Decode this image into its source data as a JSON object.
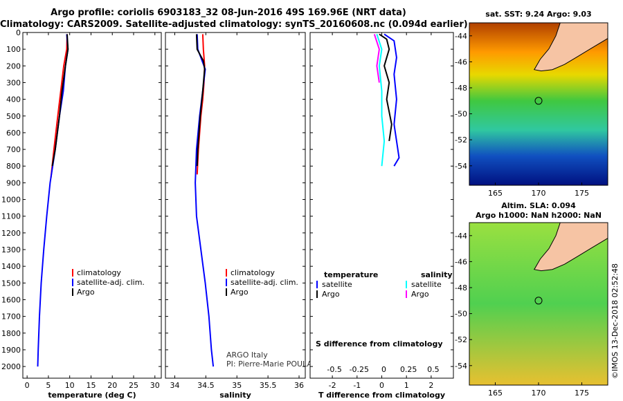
{
  "header": {
    "line1": "Argo profile: coriolis 6903183_32 08-Jun-2016 49S 169.96E (NRT data)",
    "line2": "Climatology: CARS2009. Satellite-adjusted climatology: synTS_20160608.nc (0.094d earlier)"
  },
  "colors": {
    "climatology": "#ff0000",
    "satellite": "#0000ff",
    "argo": "#000000",
    "sat_salinity": "#00ffff",
    "argo_salinity": "#ff00ff",
    "land": "#f6c4a4"
  },
  "chart_data": [
    {
      "type": "line",
      "id": "temperature",
      "xlabel": "temperature (deg C)",
      "xlim": [
        -1,
        31.5
      ],
      "ylim": [
        2070,
        0
      ],
      "xticks": [
        0,
        5,
        10,
        15,
        20,
        25,
        30
      ],
      "yticks": [
        0,
        100,
        200,
        300,
        400,
        500,
        600,
        700,
        800,
        900,
        1000,
        1100,
        1200,
        1300,
        1400,
        1500,
        1600,
        1700,
        1800,
        1900,
        2000
      ],
      "legend": [
        "climatology",
        "satellite-adj. clim.",
        "Argo"
      ],
      "series": [
        {
          "name": "climatology",
          "points": [
            [
              9.4,
              10
            ],
            [
              9.3,
              100
            ],
            [
              8.6,
              200
            ],
            [
              7.9,
              350
            ],
            [
              7.2,
              500
            ],
            [
              6.3,
              700
            ],
            [
              5.6,
              870
            ]
          ]
        },
        {
          "name": "satellite-adj. clim.",
          "points": [
            [
              9.3,
              10
            ],
            [
              9.6,
              100
            ],
            [
              9.0,
              200
            ],
            [
              8.5,
              350
            ],
            [
              7.6,
              500
            ],
            [
              6.6,
              700
            ],
            [
              5.4,
              900
            ],
            [
              4.6,
              1100
            ],
            [
              3.9,
              1300
            ],
            [
              3.3,
              1500
            ],
            [
              2.9,
              1700
            ],
            [
              2.6,
              1900
            ],
            [
              2.5,
              2000
            ]
          ]
        },
        {
          "name": "Argo",
          "points": [
            [
              9.4,
              10
            ],
            [
              9.6,
              100
            ],
            [
              9.0,
              200
            ],
            [
              8.2,
              350
            ],
            [
              7.6,
              500
            ],
            [
              6.6,
              700
            ],
            [
              5.9,
              800
            ]
          ]
        }
      ]
    },
    {
      "type": "line",
      "id": "salinity",
      "xlabel": "salinity",
      "xlim": [
        33.85,
        36.1
      ],
      "ylim": [
        2070,
        0
      ],
      "xticks": [
        34,
        34.5,
        35,
        35.5,
        36
      ],
      "xticklabels": [
        "34",
        "34.5",
        "35",
        "35.5",
        "36"
      ],
      "legend": [
        "climatology",
        "satellite-adj. clim.",
        "Argo"
      ],
      "series": [
        {
          "name": "climatology",
          "points": [
            [
              34.45,
              10
            ],
            [
              34.46,
              100
            ],
            [
              34.48,
              200
            ],
            [
              34.47,
              300
            ],
            [
              34.45,
              400
            ],
            [
              34.42,
              500
            ],
            [
              34.38,
              700
            ],
            [
              34.36,
              850
            ]
          ]
        },
        {
          "name": "satellite-adj. clim.",
          "points": [
            [
              34.36,
              10
            ],
            [
              34.37,
              100
            ],
            [
              34.43,
              160
            ],
            [
              34.49,
              220
            ],
            [
              34.45,
              350
            ],
            [
              34.4,
              500
            ],
            [
              34.35,
              700
            ],
            [
              34.33,
              900
            ],
            [
              34.35,
              1100
            ],
            [
              34.42,
              1300
            ],
            [
              34.49,
              1500
            ],
            [
              34.55,
              1700
            ],
            [
              34.59,
              1900
            ],
            [
              34.62,
              2000
            ]
          ]
        },
        {
          "name": "Argo",
          "points": [
            [
              34.35,
              10
            ],
            [
              34.36,
              100
            ],
            [
              34.46,
              170
            ],
            [
              34.48,
              220
            ],
            [
              34.45,
              350
            ],
            [
              34.41,
              500
            ],
            [
              34.37,
              700
            ],
            [
              34.36,
              800
            ]
          ]
        }
      ],
      "annotation": [
        "ARGO Italy",
        "PI: Pierre-Marie POULAIN"
      ]
    },
    {
      "type": "line",
      "id": "difference",
      "xlabel": "T difference from climatology",
      "toplabel": "S difference from climatology",
      "xlim": [
        -2.9,
        2.9
      ],
      "ylim": [
        2070,
        0
      ],
      "xticks": [
        -2,
        -1,
        0,
        1,
        2
      ],
      "top_ticklabels": [
        "-0.5",
        "-0.25",
        "0",
        "0.25",
        "0.5"
      ],
      "legend_left_title": "temperature",
      "legend_right_title": "salinity",
      "legend": [
        "satellite",
        "Argo",
        "satellite",
        "Argo"
      ],
      "series": [
        {
          "name": "T satellite",
          "points": [
            [
              0.1,
              10
            ],
            [
              0.5,
              50
            ],
            [
              0.6,
              150
            ],
            [
              0.5,
              250
            ],
            [
              0.6,
              400
            ],
            [
              0.5,
              550
            ],
            [
              0.7,
              750
            ],
            [
              0.5,
              800
            ]
          ]
        },
        {
          "name": "T Argo",
          "points": [
            [
              -0.1,
              10
            ],
            [
              0.2,
              40
            ],
            [
              0.3,
              100
            ],
            [
              0.1,
              200
            ],
            [
              0.3,
              300
            ],
            [
              0.2,
              400
            ],
            [
              0.4,
              550
            ],
            [
              0.3,
              650
            ]
          ]
        },
        {
          "name": "S satellite",
          "points": [
            [
              -0.2,
              10
            ],
            [
              0.0,
              100
            ],
            [
              -0.1,
              200
            ],
            [
              0.0,
              350
            ],
            [
              0.0,
              500
            ],
            [
              0.1,
              650
            ],
            [
              0.0,
              800
            ]
          ]
        },
        {
          "name": "S Argo",
          "points": [
            [
              -0.3,
              10
            ],
            [
              -0.1,
              100
            ],
            [
              -0.2,
              200
            ],
            [
              -0.1,
              300
            ]
          ]
        }
      ]
    },
    {
      "type": "heatmap",
      "id": "sst_map",
      "title": "sat. SST: 9.24 Argo: 9.03",
      "xlim": [
        162,
        178
      ],
      "ylim": [
        -55.5,
        -43
      ],
      "xticks": [
        165,
        170,
        175
      ],
      "yticks": [
        -44,
        -46,
        -48,
        -50,
        -52,
        -54
      ],
      "float_position": [
        170,
        -49
      ]
    },
    {
      "type": "heatmap",
      "id": "sla_map",
      "title_line1": "Altim. SLA: 0.094",
      "title_line2": "Argo h1000: NaN h2000: NaN",
      "xlim": [
        162,
        178
      ],
      "ylim": [
        -55.5,
        -43
      ],
      "xticks": [
        165,
        170,
        175
      ],
      "yticks": [
        -44,
        -46,
        -48,
        -50,
        -52,
        -54
      ],
      "float_position": [
        170,
        -49
      ]
    }
  ],
  "watermark": "©IMOS 13-Dec-2018 02:52:48"
}
